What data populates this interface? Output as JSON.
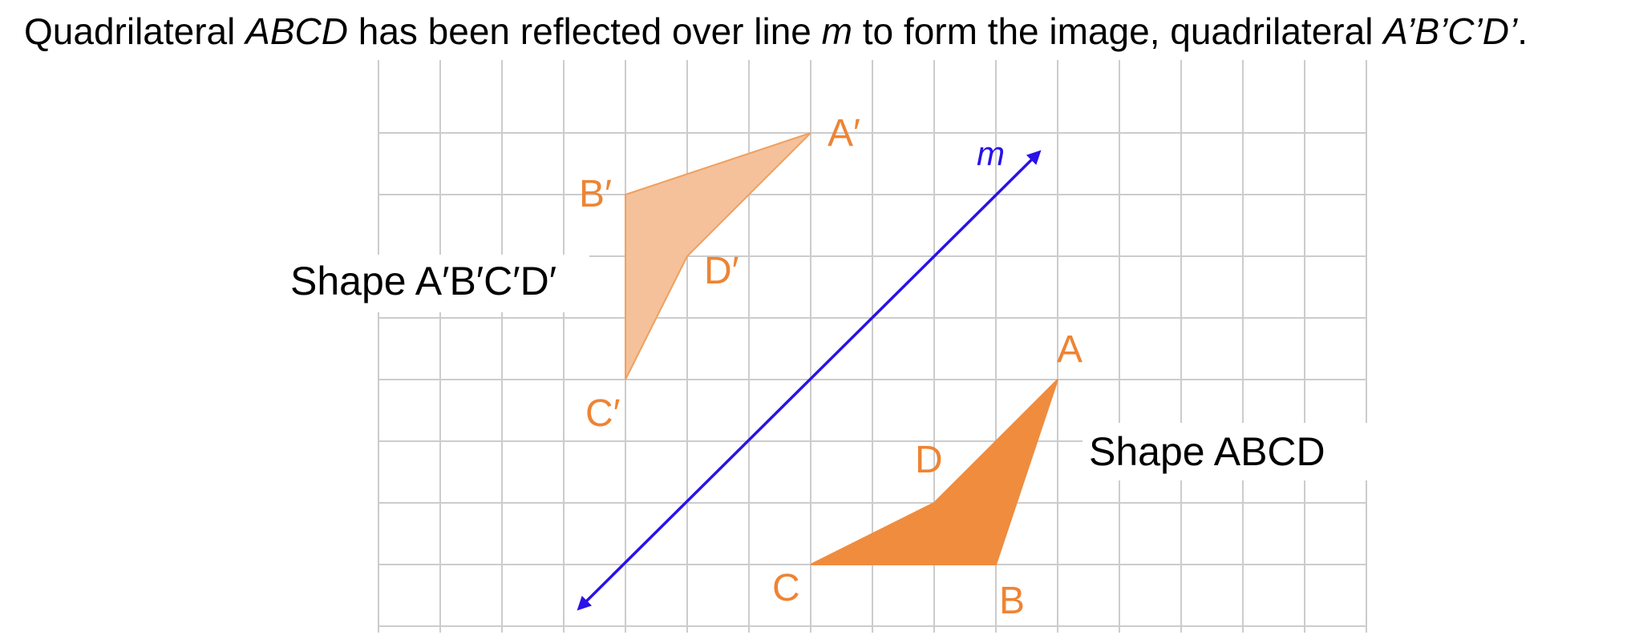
{
  "prompt": {
    "part1": "Quadrilateral ",
    "shape": "ABCD",
    "part2": " has been reflected over line ",
    "line": "m",
    "part3": " to form the image, quadrilateral ",
    "image": "A’B’C’D’",
    "part4": "."
  },
  "figure": {
    "line_label": "m",
    "preimage_label": "Shape ABCD",
    "image_label": "Shape A′B′C′D′",
    "vertices": {
      "A": "A",
      "B": "B",
      "C": "C",
      "D": "D",
      "A_prime": "A′",
      "B_prime": "B′",
      "C_prime": "C′",
      "D_prime": "D′"
    },
    "colors": {
      "preimage_fill": "#ef8c3e",
      "image_fill": "#f4c19a",
      "image_stroke": "#f0a060",
      "vertex_label": "#ee8434",
      "line_m": "#2a12e8",
      "grid": "#cccccc"
    }
  }
}
